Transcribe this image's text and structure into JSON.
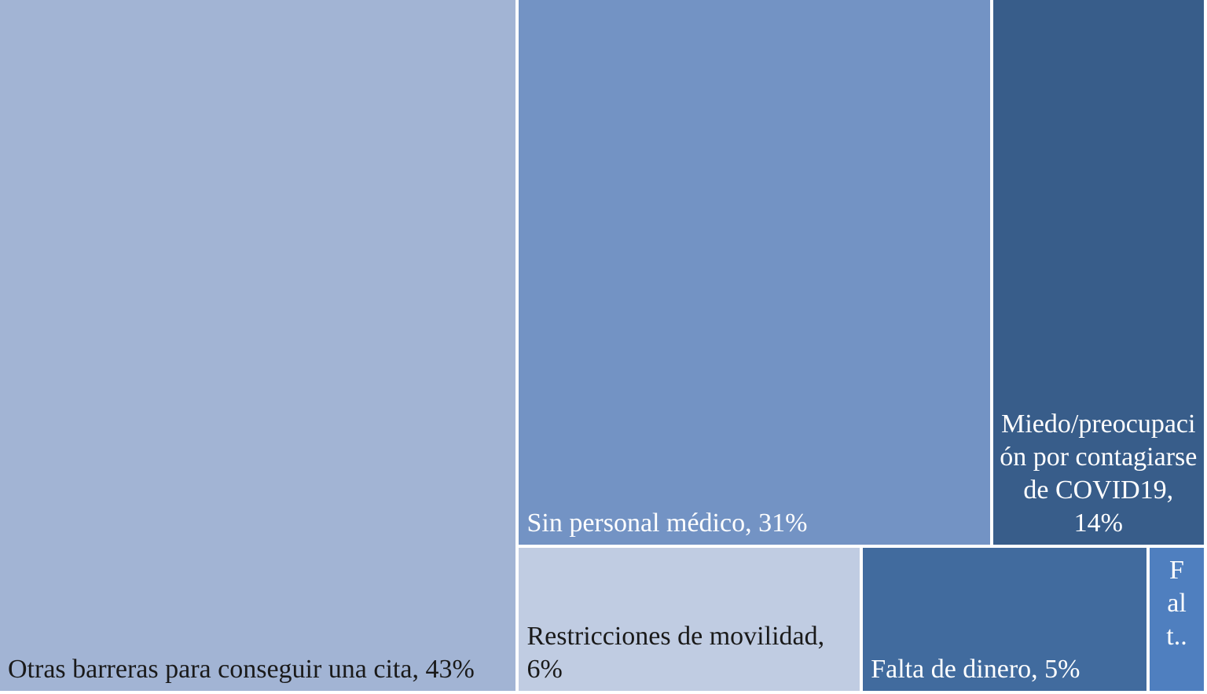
{
  "chart_data": {
    "type": "treemap",
    "labels": [
      "Otras barreras para conseguir una cita, 43%",
      "Sin personal médico, 31%",
      "Miedo/preocupación por contagiarse de COVID19, 14%",
      "Restricciones de movilidad, 6%",
      "Falta de dinero, 5%",
      "F al t.."
    ],
    "values": [
      43,
      31,
      14,
      6,
      5,
      1
    ],
    "colors": [
      "#a2b4d4",
      "#7393c4",
      "#385d8a",
      "#c0cce2",
      "#416b9e",
      "#4f7fbf"
    ]
  }
}
